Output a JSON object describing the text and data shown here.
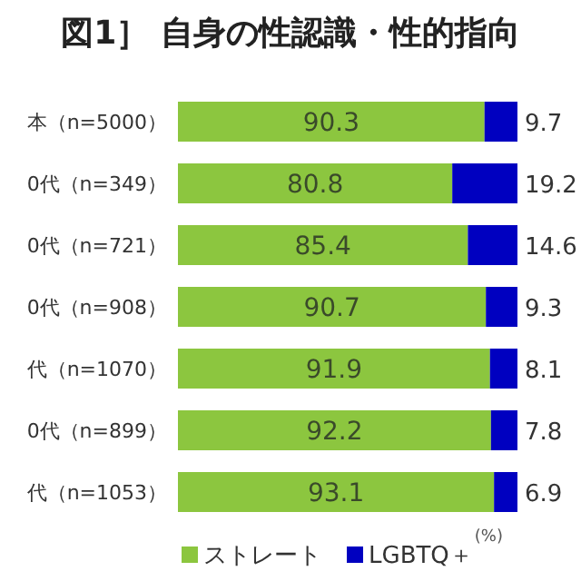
{
  "chart_data": {
    "type": "bar",
    "orientation": "horizontal",
    "stacked": true,
    "title": "図1］ 自身の性認識・性的指向",
    "categories": [
      "本（n=5000）",
      "0代（n=349）",
      "0代（n=721）",
      "0代（n=908）",
      "代（n=1070）",
      "0代（n=899）",
      "代（n=1053）"
    ],
    "series": [
      {
        "name": "ストレート",
        "color": "#8cc63f",
        "values": [
          90.3,
          80.8,
          85.4,
          90.7,
          91.9,
          92.2,
          93.1
        ]
      },
      {
        "name": "LGBTQ＋",
        "color": "#0000c0",
        "values": [
          9.7,
          19.2,
          14.6,
          9.3,
          8.1,
          7.8,
          6.9
        ]
      }
    ],
    "xlim": [
      0,
      100
    ],
    "data_labels": true,
    "legend": "bottom",
    "annotations": [
      "(%)"
    ]
  }
}
